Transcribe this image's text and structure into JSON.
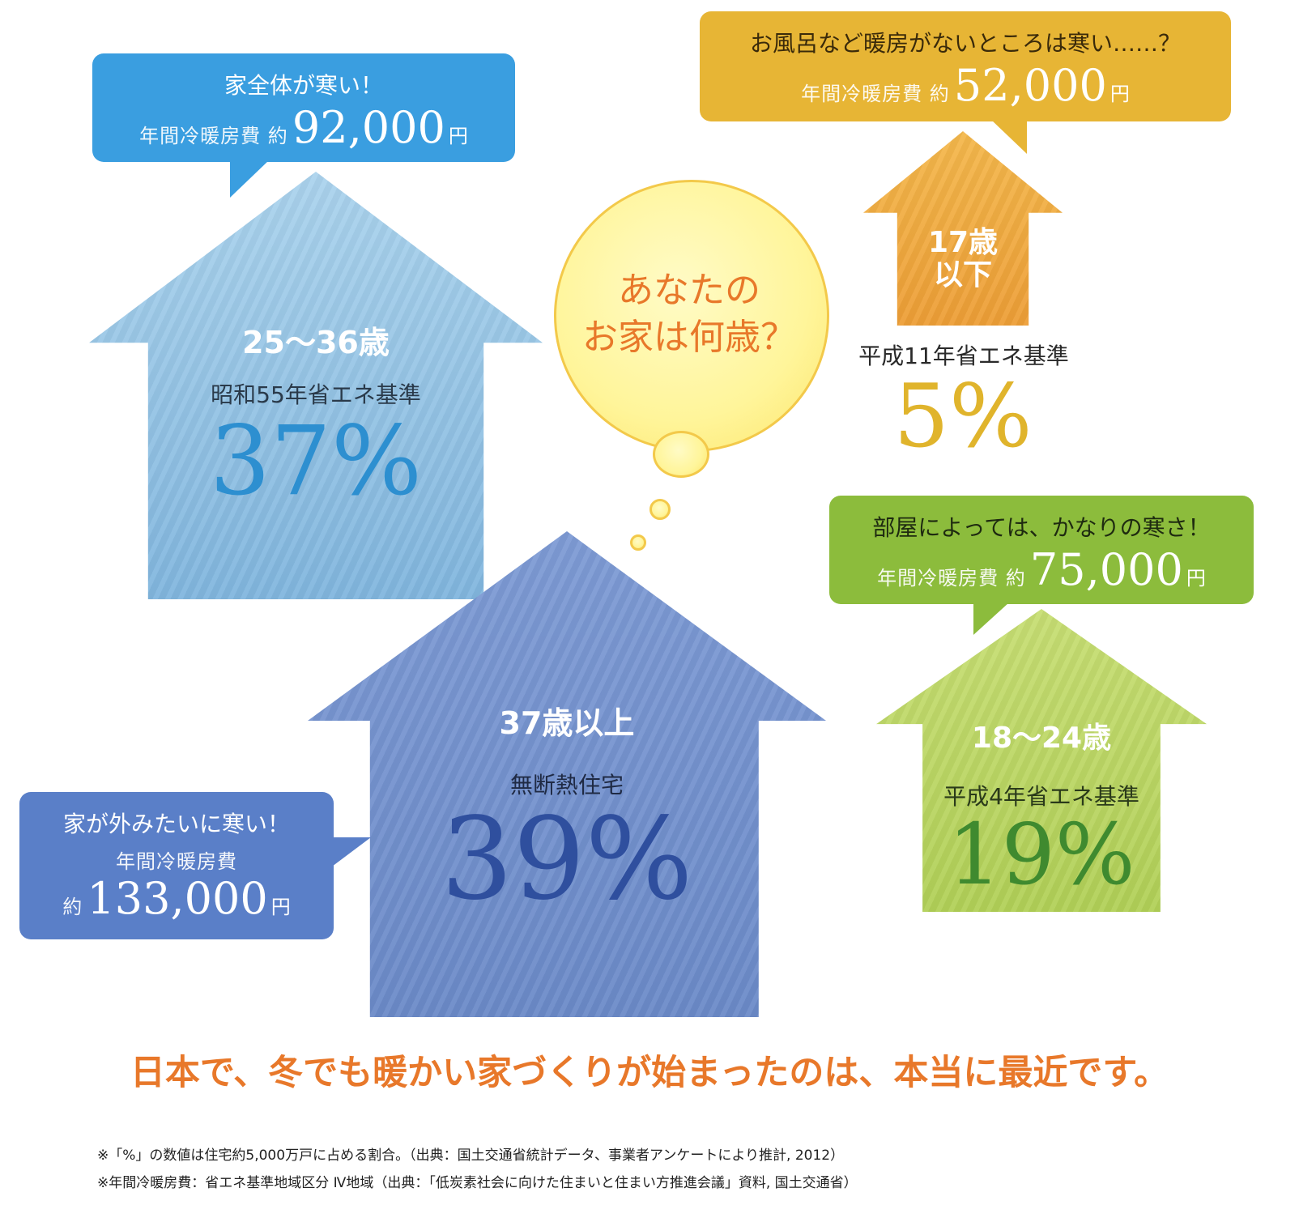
{
  "thought": {
    "line1": "あなたの",
    "line2": "お家は何歳？"
  },
  "blue_house": {
    "age": "25〜36歳",
    "standard": "昭和55年省エネ基準",
    "percent": "37%",
    "bubble": {
      "title": "家全体が寒い！",
      "cost_label": "年間冷暖房費 約",
      "cost": "92,000",
      "unit": "円"
    },
    "colors": {
      "house": "#8ec3e6",
      "bubble": "#3a9ee0"
    }
  },
  "orange_house": {
    "age_line1": "17歳",
    "age_line2": "以下",
    "standard": "平成11年省エネ基準",
    "percent": "5%",
    "bubble": {
      "title": "お風呂など暖房がないところは寒い……？",
      "cost_label": "年間冷暖房費 約",
      "cost": "52,000",
      "unit": "円"
    },
    "colors": {
      "house": "#f3a93a",
      "bubble": "#e7b535",
      "percent": "#e0b42c"
    }
  },
  "navy_house": {
    "age": "37歳以上",
    "standard": "無断熱住宅",
    "percent": "39%",
    "bubble": {
      "title": "家が外みたいに寒い！",
      "cost_label": "年間冷暖房費",
      "cost_prefix": "約",
      "cost": "133,000",
      "unit": "円"
    },
    "colors": {
      "house": "#6f8fd0",
      "bubble": "#5a7fc8",
      "percent": "#2f4f9e"
    }
  },
  "green_house": {
    "age": "18〜24歳",
    "standard": "平成4年省エネ基準",
    "percent": "19%",
    "bubble": {
      "title": "部屋によっては、かなりの寒さ！",
      "cost_label": "年間冷暖房費 約",
      "cost": "75,000",
      "unit": "円"
    },
    "colors": {
      "house": "#b8d65a",
      "bubble": "#8cbc3c",
      "percent": "#3f8a2f"
    }
  },
  "headline": "日本で、冬でも暖かい家づくりが始まったのは、本当に最近です。",
  "notes": [
    "※「%」の数値は住宅約5,000万戸に占める割合。（出典：国土交通省統計データ、事業者アンケートにより推計, 2012）",
    "※年間冷暖房費：省エネ基準地域区分 Ⅳ地域（出典：「低炭素社会に向けた住まいと住まい方推進会議」資料, 国土交通省）"
  ]
}
